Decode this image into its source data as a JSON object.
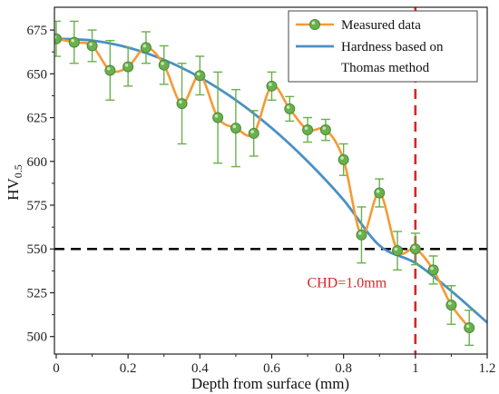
{
  "chart_data": {
    "type": "line",
    "xlabel": "Depth from surface (mm)",
    "ylabel": {
      "main": "HV",
      "sub": "0.5"
    },
    "xlim": [
      -0.005,
      1.2
    ],
    "ylim": [
      490,
      688
    ],
    "xticks": [
      0,
      0.2,
      0.4,
      0.6,
      0.8,
      1,
      1.2
    ],
    "xtick_labels": [
      "0",
      "0.2",
      "0.4",
      "0.6",
      "0.8",
      "1",
      "1.2"
    ],
    "yticks": [
      500,
      525,
      550,
      575,
      600,
      625,
      650,
      675
    ],
    "ytick_labels": [
      "500",
      "525",
      "550",
      "575",
      "600",
      "625",
      "650",
      "675"
    ],
    "grid": false,
    "legend_position": "top-right",
    "series": [
      {
        "name": "Measured data",
        "color": "#f59a34",
        "marker_color": "#6ab04c",
        "x": [
          0,
          0.05,
          0.1,
          0.15,
          0.2,
          0.25,
          0.3,
          0.35,
          0.4,
          0.45,
          0.5,
          0.55,
          0.6,
          0.65,
          0.7,
          0.75,
          0.8,
          0.85,
          0.9,
          0.95,
          1.0,
          1.05,
          1.1,
          1.15
        ],
        "y": [
          670,
          668,
          666,
          652,
          654,
          665,
          655,
          633,
          649,
          625,
          619,
          616,
          643,
          630,
          618,
          618,
          601,
          558,
          582,
          549,
          550,
          538,
          518,
          505
        ],
        "err": [
          10,
          12,
          9,
          17,
          11,
          9,
          11,
          23,
          11,
          26,
          22,
          13,
          8,
          7,
          7,
          6,
          9,
          16,
          8,
          11,
          9,
          8,
          11,
          10
        ]
      },
      {
        "name": "Hardness based on Thomas method",
        "legend_lines": [
          "Hardness based on",
          "Thomas method"
        ],
        "color": "#4a90c4",
        "x": [
          0,
          0.1,
          0.2,
          0.3,
          0.4,
          0.5,
          0.6,
          0.7,
          0.8,
          0.9,
          1.0,
          1.1,
          1.2
        ],
        "y": [
          670,
          669,
          665,
          658,
          648,
          635,
          619,
          600,
          578,
          552,
          542,
          526,
          508
        ]
      }
    ],
    "reference_lines": [
      {
        "orientation": "horizontal",
        "value": 550,
        "color": "#000000"
      },
      {
        "orientation": "vertical",
        "value": 1.0,
        "color": "#d62728"
      }
    ],
    "annotations": [
      {
        "text": "CHD=1.0mm",
        "x": 0.92,
        "y": 528,
        "color": "#d62728"
      }
    ]
  }
}
